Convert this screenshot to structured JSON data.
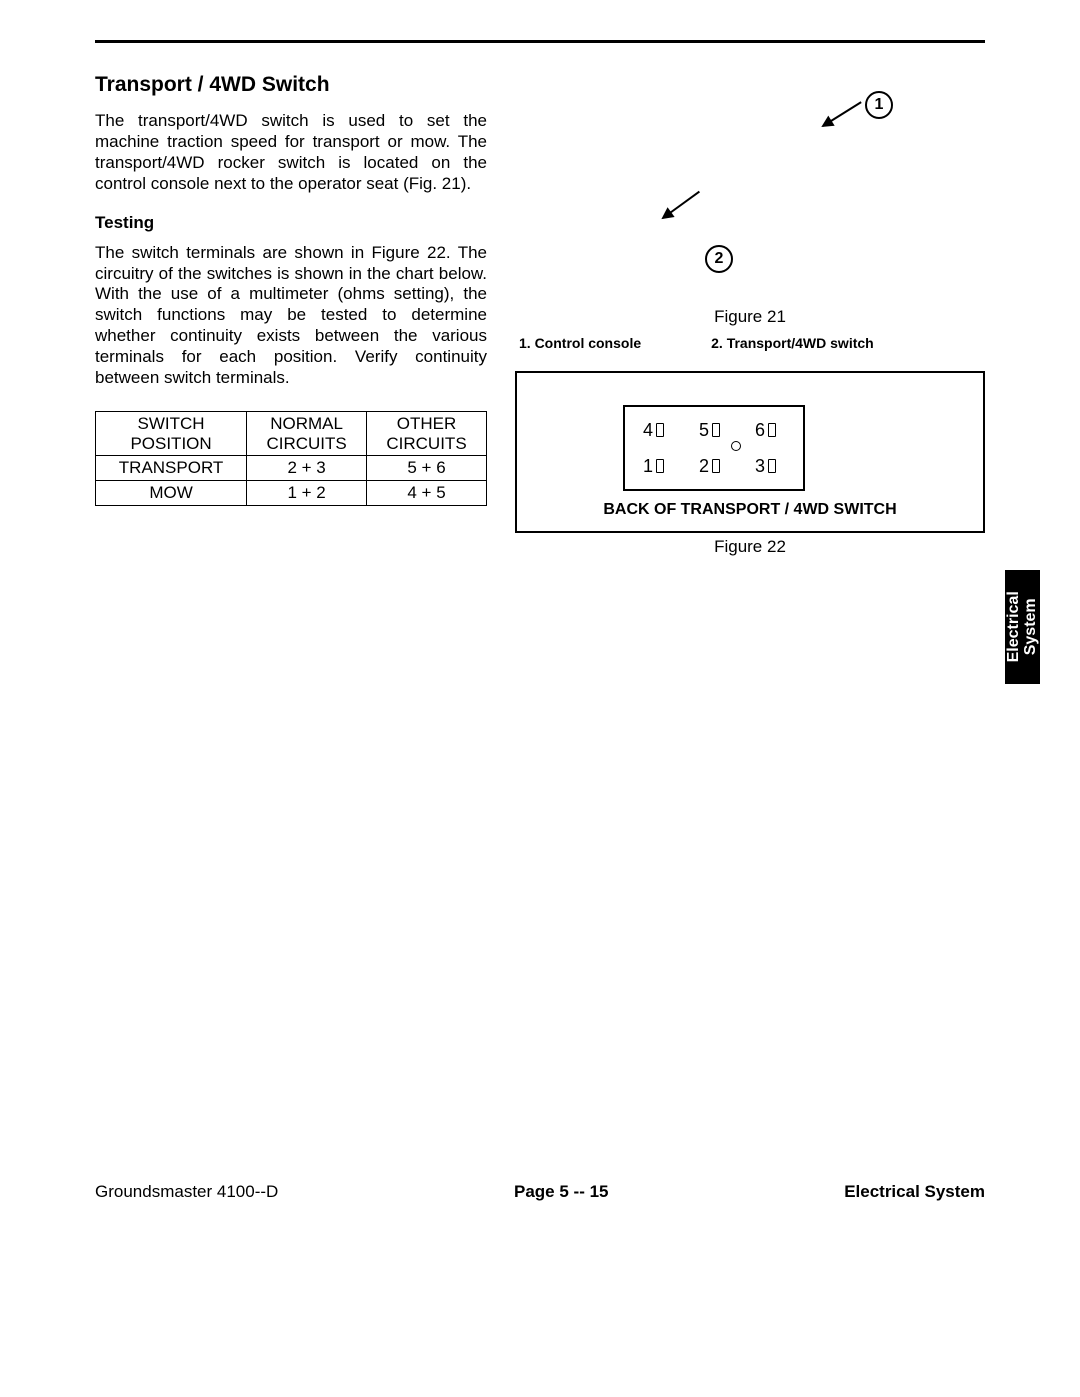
{
  "section": {
    "title": "Transport / 4WD Switch",
    "intro": "The transport/4WD switch is used to set the machine traction speed for transport or mow. The transport/4WD rocker switch is located on the control console next to the operator seat (Fig. 21).",
    "testing_heading": "Testing",
    "testing_body": "The switch terminals are shown in Figure 22. The circuitry of the switches is shown in the chart below. With the use of a multimeter (ohms setting), the switch functions may be tested to determine whether continuity exists between the various terminals for each position. Verify continuity between switch terminals."
  },
  "table": {
    "type": "table",
    "columns": [
      "SWITCH POSITION",
      "NORMAL CIRCUITS",
      "OTHER CIRCUITS"
    ],
    "rows": [
      [
        "TRANSPORT",
        "2 + 3",
        "5 + 6"
      ],
      [
        "MOW",
        "1 + 2",
        "4 + 5"
      ]
    ],
    "border_color": "#000000",
    "font_size": 17,
    "alignment": "center"
  },
  "figure21": {
    "caption": "Figure 21",
    "callouts": {
      "c1": "1",
      "c2": "2"
    },
    "legend": {
      "l1": "1.   Control console",
      "l2": "2.   Transport/4WD switch"
    }
  },
  "figure22": {
    "type": "diagram",
    "terminals_top": [
      "4",
      "5",
      "6"
    ],
    "terminals_bottom": [
      "1",
      "2",
      "3"
    ],
    "label": "BACK OF TRANSPORT / 4WD SWITCH",
    "caption": "Figure 22",
    "border_color": "#000000"
  },
  "side_tab": {
    "line1": "Electrical",
    "line2": "System",
    "bg": "#000000",
    "fg": "#ffffff"
  },
  "footer": {
    "left": "Groundsmaster 4100--D",
    "center": "Page 5 -- 15",
    "right": "Electrical System"
  }
}
